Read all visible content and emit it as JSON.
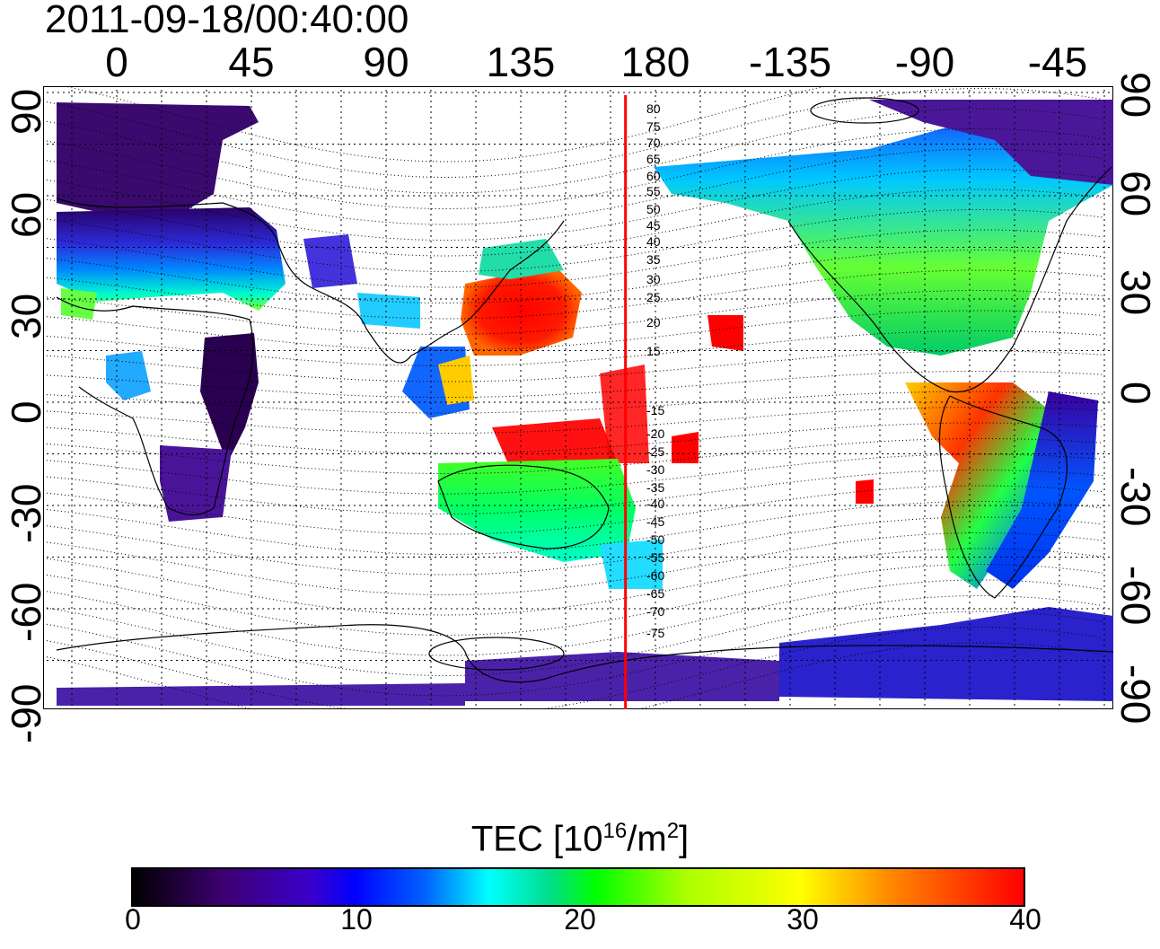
{
  "title": "2011-09-18/00:40:00",
  "lon_ticks": [
    "0",
    "45",
    "90",
    "135",
    "180",
    "-135",
    "-90",
    "-45"
  ],
  "lat_ticks": [
    "90",
    "60",
    "30",
    "0",
    "-30",
    "-60",
    "-90"
  ],
  "contour_labels": [
    "80",
    "75",
    "70",
    "65",
    "60",
    "55",
    "50",
    "45",
    "40",
    "35",
    "30",
    "25",
    "20",
    "15",
    "-15",
    "-20",
    "-25",
    "-30",
    "-35",
    "-40",
    "-45",
    "-50",
    "-55",
    "-60",
    "-65",
    "-70",
    "-75"
  ],
  "marker_longitude": 170,
  "colorbar": {
    "label_main": "TEC  [10",
    "label_exp1": "16",
    "label_mid": "/m",
    "label_exp2": "2",
    "label_end": "]",
    "ticks": [
      "0",
      "10",
      "20",
      "30",
      "40"
    ],
    "range": [
      0,
      40
    ]
  },
  "colors": {
    "marker_line": "#ff0000",
    "low": "#3d0070",
    "mid": "#00ff00",
    "high": "#ff0000"
  }
}
